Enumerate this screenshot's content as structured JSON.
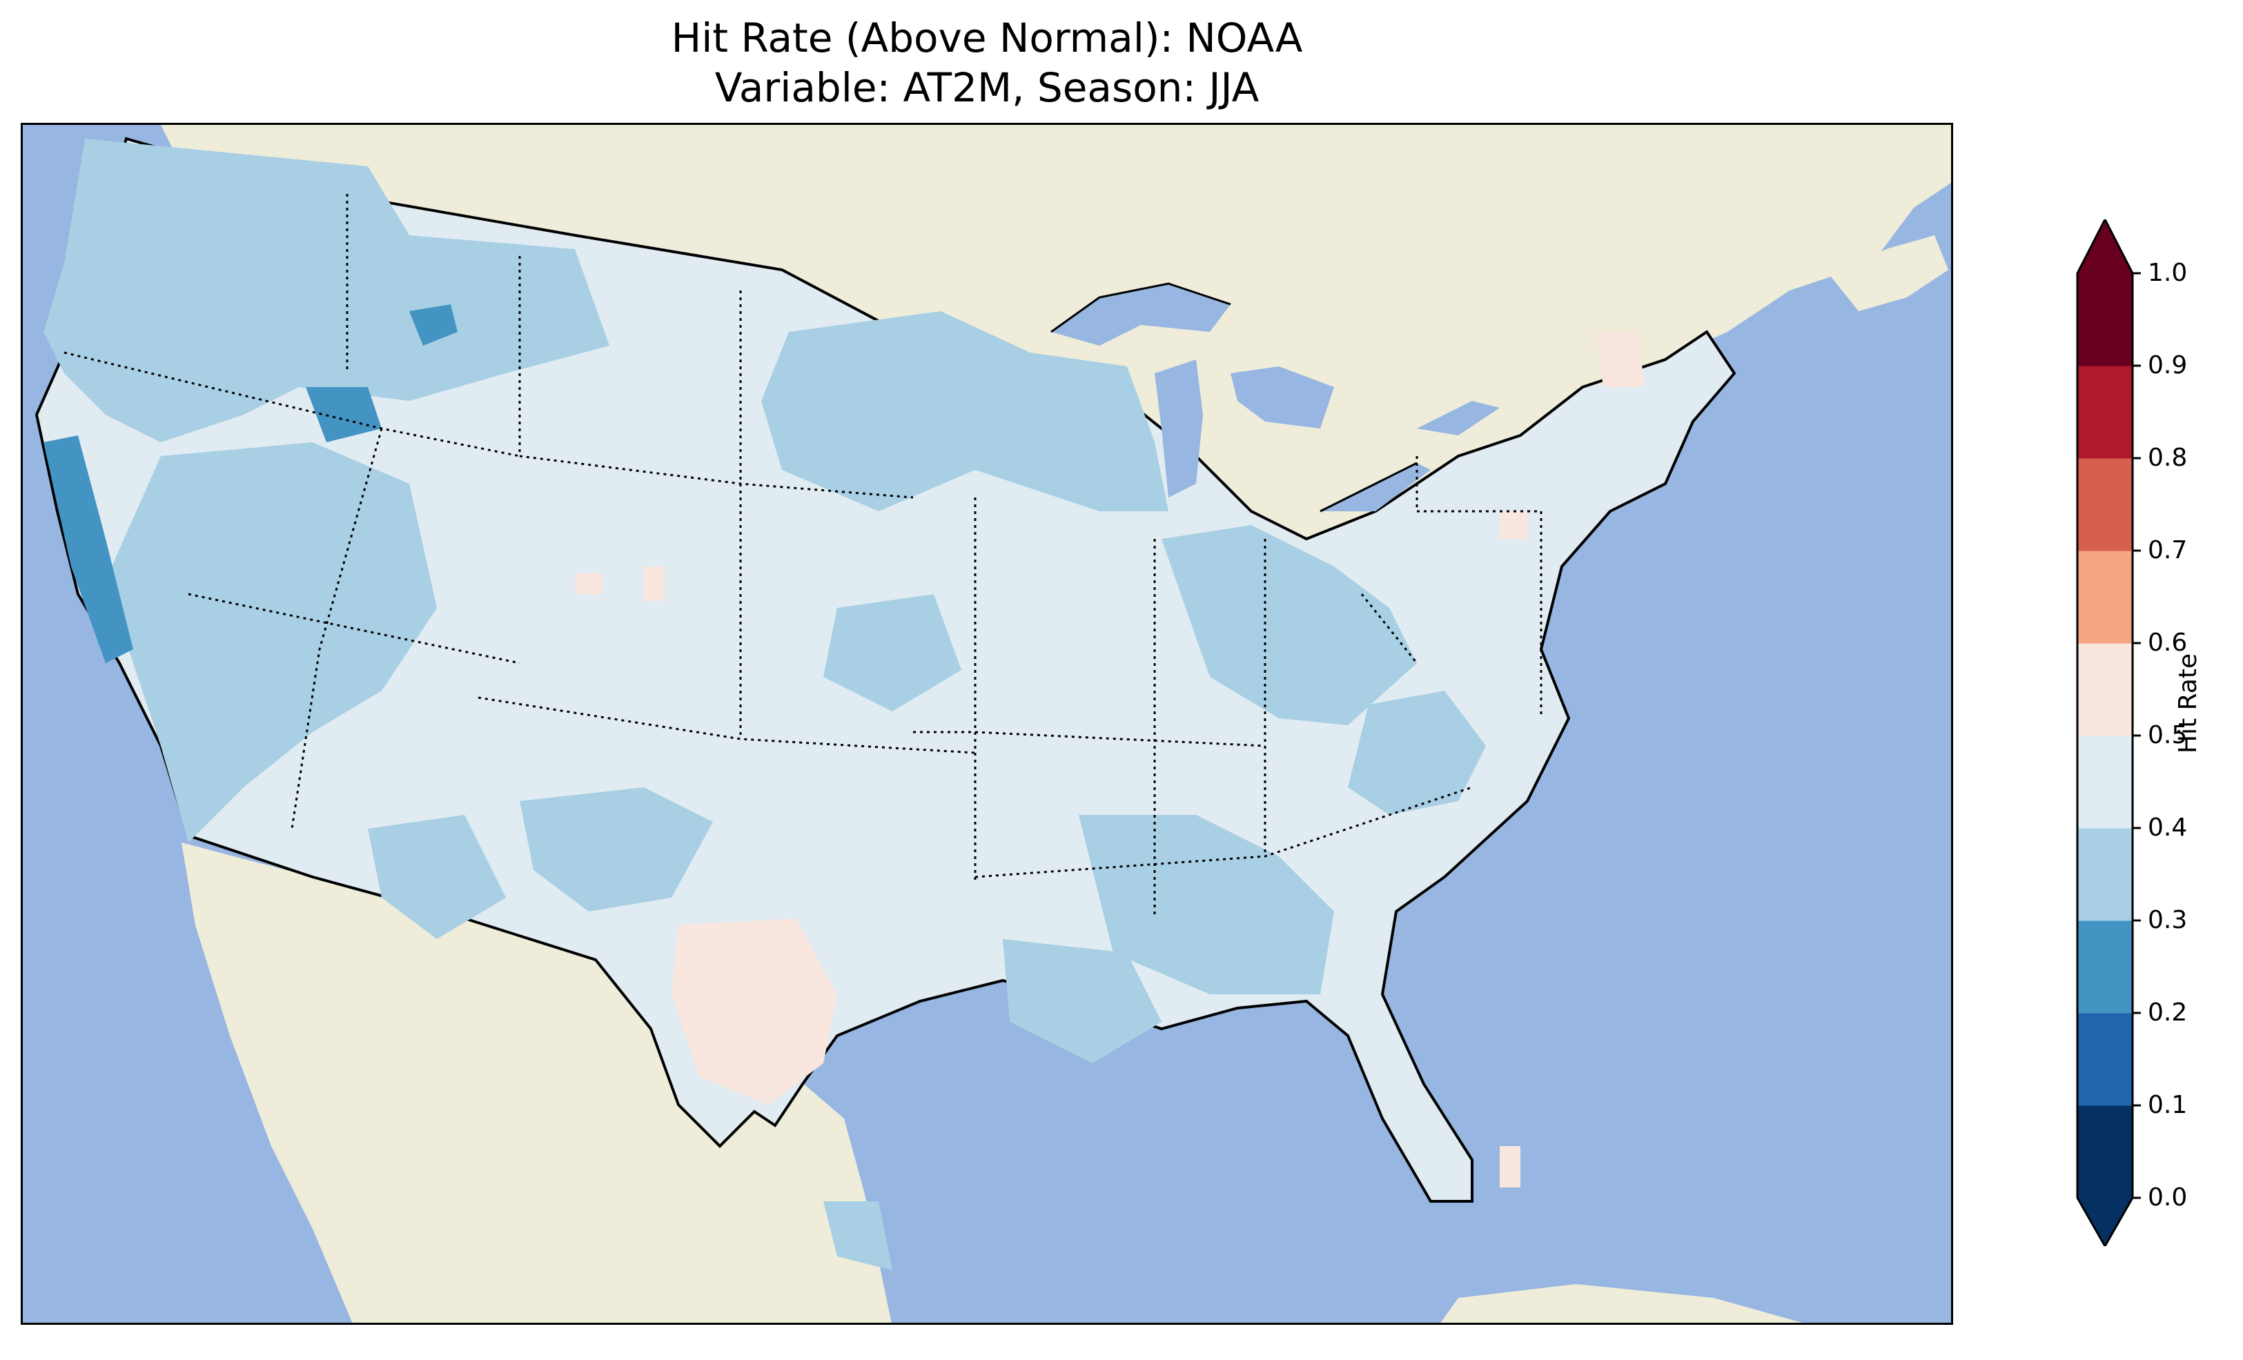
{
  "title": {
    "line1": "Hit Rate (Above Normal): NOAA",
    "line2": "Variable: AT2M, Season: JJA"
  },
  "map": {
    "region": "CONUS",
    "projection": "Lambert Conformal",
    "colors": {
      "ocean": "#97b6e1",
      "land": "#efedda",
      "state_borders": "dotted",
      "coastlines": "solid"
    }
  },
  "colorbar": {
    "label": "Hit Rate",
    "ticks": [
      "0.0",
      "0.1",
      "0.2",
      "0.3",
      "0.4",
      "0.5",
      "0.6",
      "0.7",
      "0.8",
      "0.9",
      "1.0"
    ],
    "bins": [
      {
        "range": [
          0.0,
          0.1
        ],
        "color": "#053061"
      },
      {
        "range": [
          0.1,
          0.2
        ],
        "color": "#2166ac"
      },
      {
        "range": [
          0.2,
          0.3
        ],
        "color": "#4393c3"
      },
      {
        "range": [
          0.3,
          0.4
        ],
        "color": "#a8cfe3"
      },
      {
        "range": [
          0.4,
          0.5
        ],
        "color": "#e1ebf2"
      },
      {
        "range": [
          0.5,
          0.6
        ],
        "color": "#f8e6df"
      },
      {
        "range": [
          0.6,
          0.7
        ],
        "color": "#f4a582"
      },
      {
        "range": [
          0.7,
          0.8
        ],
        "color": "#d6604d"
      },
      {
        "range": [
          0.8,
          0.9
        ],
        "color": "#b2182b"
      },
      {
        "range": [
          0.9,
          1.0
        ],
        "color": "#67001f"
      }
    ],
    "extend": "both"
  }
}
